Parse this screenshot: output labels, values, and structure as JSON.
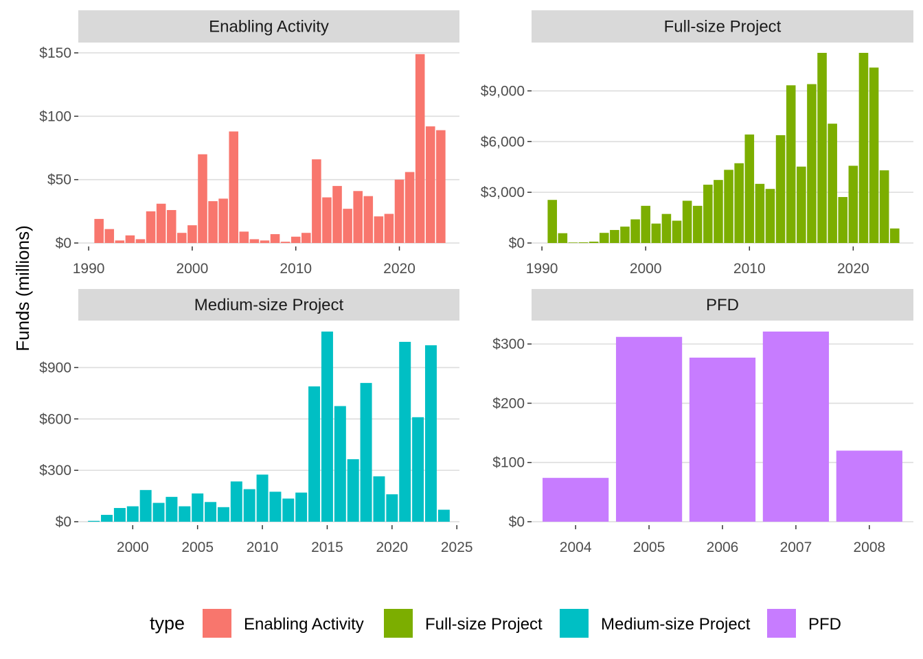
{
  "chart_data": {
    "type": "bar",
    "ylabel": "Funds (millions)",
    "legend": {
      "title": "type",
      "position": "bottom",
      "entries": [
        {
          "label": "Enabling Activity",
          "color": "#F8766D"
        },
        {
          "label": "Full-size Project",
          "color": "#7CAE00"
        },
        {
          "label": "Medium-size Project",
          "color": "#00BFC4"
        },
        {
          "label": "PFD",
          "color": "#C77CFF"
        }
      ]
    },
    "grid": true,
    "panels": [
      {
        "title": "Enabling Activity",
        "color": "#F8766D",
        "x": [
          1991,
          1992,
          1993,
          1994,
          1995,
          1996,
          1997,
          1998,
          1999,
          2000,
          2001,
          2002,
          2003,
          2004,
          2005,
          2006,
          2007,
          2008,
          2009,
          2010,
          2011,
          2012,
          2013,
          2014,
          2015,
          2016,
          2017,
          2018,
          2019,
          2020,
          2021,
          2022,
          2023,
          2024
        ],
        "values": [
          19,
          11,
          2,
          6,
          3,
          25,
          31,
          26,
          8,
          14,
          70,
          33,
          35,
          88,
          9,
          3,
          2,
          7,
          1,
          5,
          8,
          66,
          36,
          45,
          27,
          41,
          37,
          21,
          23,
          50,
          56,
          149,
          92,
          89
        ],
        "xlim": [
          1989.0,
          2025.8
        ],
        "ylim": [
          0,
          150
        ],
        "xticks": [
          1990,
          2000,
          2010,
          2020
        ],
        "xtick_labels": [
          "1990",
          "2000",
          "2010",
          "2020"
        ],
        "yticks": [
          0,
          50,
          100,
          150
        ],
        "ytick_labels": [
          "$0",
          "$50",
          "$100",
          "$150"
        ]
      },
      {
        "title": "Full-size Project",
        "color": "#7CAE00",
        "x": [
          1991,
          1992,
          1993,
          1994,
          1995,
          1996,
          1997,
          1998,
          1999,
          2000,
          2001,
          2002,
          2003,
          2004,
          2005,
          2006,
          2007,
          2008,
          2009,
          2010,
          2011,
          2012,
          2013,
          2014,
          2015,
          2016,
          2017,
          2018,
          2019,
          2020,
          2021,
          2022,
          2023,
          2024
        ],
        "values": [
          2550,
          580,
          30,
          40,
          80,
          600,
          770,
          970,
          1400,
          2200,
          1150,
          1720,
          1320,
          2500,
          2200,
          3450,
          3730,
          4330,
          4720,
          6420,
          3500,
          3200,
          6380,
          9330,
          4520,
          9400,
          11250,
          7060,
          2720,
          4570,
          11250,
          10380,
          4300,
          860
        ],
        "xlim": [
          1989.0,
          2025.8
        ],
        "ylim": [
          0,
          11250
        ],
        "xticks": [
          1990,
          2000,
          2010,
          2020
        ],
        "xtick_labels": [
          "1990",
          "2000",
          "2010",
          "2020"
        ],
        "yticks": [
          0,
          3000,
          6000,
          9000
        ],
        "ytick_labels": [
          "$0",
          "$3,000",
          "$6,000",
          "$9,000"
        ]
      },
      {
        "title": "Medium-size Project",
        "color": "#00BFC4",
        "x": [
          1997,
          1998,
          1999,
          2000,
          2001,
          2002,
          2003,
          2004,
          2005,
          2006,
          2007,
          2008,
          2009,
          2010,
          2011,
          2012,
          2013,
          2014,
          2015,
          2016,
          2017,
          2018,
          2019,
          2020,
          2021,
          2022,
          2023,
          2024
        ],
        "values": [
          5,
          40,
          80,
          90,
          185,
          110,
          145,
          90,
          165,
          115,
          85,
          235,
          190,
          275,
          175,
          135,
          170,
          790,
          1110,
          675,
          365,
          810,
          265,
          160,
          1050,
          610,
          1030,
          70
        ],
        "xlim": [
          1995.8,
          2025.2
        ],
        "ylim": [
          0,
          1110
        ],
        "xticks": [
          2000,
          2005,
          2010,
          2015,
          2020,
          2025
        ],
        "xtick_labels": [
          "2000",
          "2005",
          "2010",
          "2015",
          "2020",
          "2025"
        ],
        "yticks": [
          0,
          300,
          600,
          900
        ],
        "ytick_labels": [
          "$0",
          "$300",
          "$600",
          "$900"
        ]
      },
      {
        "title": "PFD",
        "color": "#C77CFF",
        "x": [
          2004,
          2005,
          2006,
          2007,
          2008
        ],
        "values": [
          74,
          312,
          277,
          321,
          120
        ],
        "xlim": [
          2003.4,
          2008.6
        ],
        "ylim": [
          0,
          321
        ],
        "xticks": [
          2004,
          2005,
          2006,
          2007,
          2008
        ],
        "xtick_labels": [
          "2004",
          "2005",
          "2006",
          "2007",
          "2008"
        ],
        "yticks": [
          0,
          100,
          200,
          300
        ],
        "ytick_labels": [
          "$0",
          "$100",
          "$200",
          "$300"
        ]
      }
    ]
  }
}
